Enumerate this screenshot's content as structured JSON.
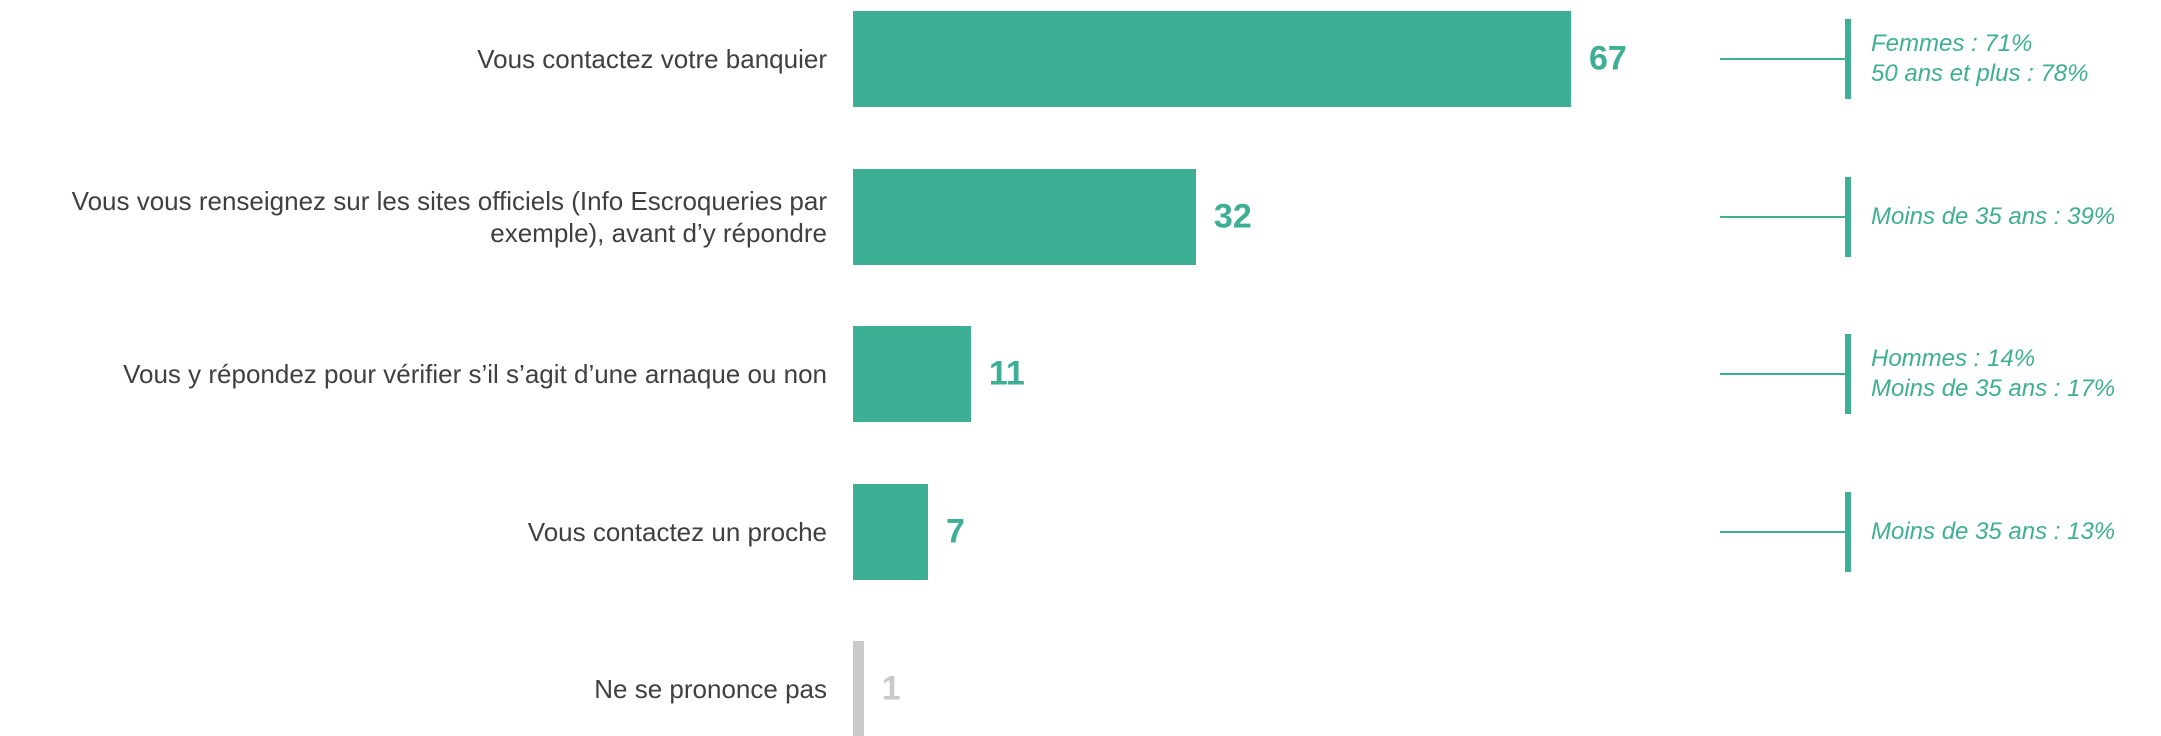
{
  "chart_data": {
    "type": "bar",
    "orientation": "horizontal",
    "categories": [
      "Vous contactez votre banquier",
      "Vous vous renseignez sur les sites officiels (Info Escroqueries par exemple), avant d’y répondre",
      "Vous y répondez pour vérifier s’il s’agit d’une arnaque ou non",
      "Vous contactez un proche",
      "Ne se prononce pas"
    ],
    "values": [
      67,
      32,
      11,
      7,
      1
    ],
    "colors": [
      "#3daf94",
      "#3daf94",
      "#3daf94",
      "#3daf94",
      "#c9c9c9"
    ],
    "annotation_color": "#3daf94",
    "annotations": [
      [
        "Femmes : 71%",
        "50 ans et plus : 78%"
      ],
      [
        "Moins de 35 ans : 39%"
      ],
      [
        "Hommes : 14%",
        "Moins de 35 ans : 17%"
      ],
      [
        "Moins de 35 ans : 13%"
      ],
      null
    ]
  }
}
